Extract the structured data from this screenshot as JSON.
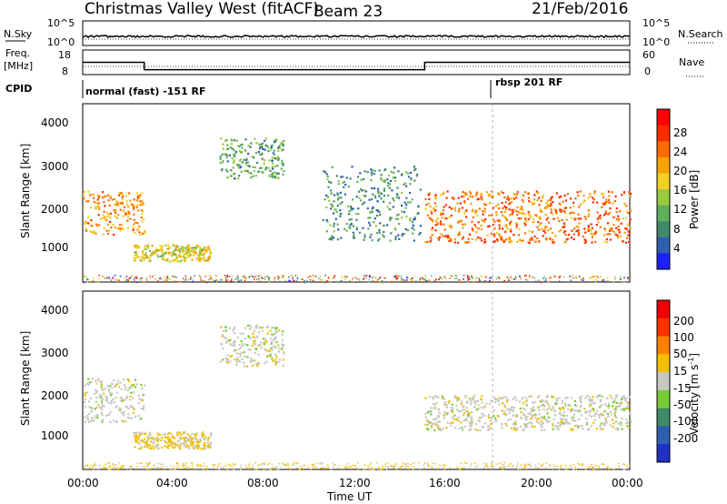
{
  "header": {
    "title": "Christmas Valley West (fitACF)",
    "beam": "Beam 23",
    "date": "21/Feb/2016"
  },
  "top_panels": {
    "nsky_label": "N.Sky",
    "nsky_ticks": [
      "10^5",
      "10^0"
    ],
    "nsearch_label": "N.Search",
    "nsearch_ticks": [
      "10^5",
      "10^0"
    ],
    "freq_label_1": "Freq.",
    "freq_label_2": "[MHz]",
    "freq_ticks": [
      "18",
      "8"
    ],
    "nave_label": "Nave",
    "nave_ticks": [
      "60",
      "0"
    ],
    "cpid_label": "CPID",
    "cpid_segments": [
      {
        "label": "normal (fast) -151 RF",
        "start_hour": 0
      },
      {
        "label": "rbsp 201 RF",
        "start_hour": 18
      }
    ]
  },
  "axes": {
    "xlabel": "Time UT",
    "ylabel": "Slant Range [km]",
    "xticks": [
      "00:00",
      "04:00",
      "08:00",
      "12:00",
      "16:00",
      "20:00",
      "00:00"
    ],
    "yticks": [
      "1000",
      "2000",
      "3000",
      "4000"
    ]
  },
  "colorbars": {
    "power": {
      "label": "Power [dB]",
      "ticks": [
        "4",
        "8",
        "12",
        "16",
        "20",
        "24",
        "28"
      ],
      "colors": [
        "#1f1fff",
        "#2e5fb0",
        "#3f8a6a",
        "#5fb05a",
        "#9acb3a",
        "#f2d020",
        "#f5a300",
        "#ff6a00",
        "#ff2a00",
        "#ff0000"
      ]
    },
    "velocity": {
      "label": "Velocity [m s",
      "label_sup": "-1",
      "label_end": "]",
      "ticks": [
        "200",
        "100",
        "50",
        "15",
        "-15",
        "-50",
        "-100",
        "-200"
      ],
      "colors": [
        "#2030c8",
        "#2e5fb0",
        "#3f8a6a",
        "#77cc33",
        "#c8c8c0",
        "#f2c000",
        "#ff8000",
        "#ff3300",
        "#ee0000"
      ]
    }
  },
  "chart_data": {
    "type": "heatmap",
    "title": "Christmas Valley West (fitACF)",
    "xlabel": "Time UT",
    "ylabel": "Slant Range [km]",
    "xlim": [
      "00:00",
      "24:00"
    ],
    "ylim": [
      180,
      4500
    ],
    "panels": [
      {
        "name": "Power",
        "colorbar_label": "Power [dB]",
        "clim": [
          0,
          30
        ],
        "regions": [
          {
            "t_start": 0.0,
            "t_end": 2.7,
            "range_start": 1350,
            "range_end": 2400,
            "value": 20
          },
          {
            "t_start": 2.2,
            "t_end": 5.6,
            "range_start": 700,
            "range_end": 1100,
            "value": 16
          },
          {
            "t_start": 6.0,
            "t_end": 8.8,
            "range_start": 2700,
            "range_end": 3700,
            "value": 10
          },
          {
            "t_start": 10.5,
            "t_end": 14.8,
            "range_start": 1200,
            "range_end": 3000,
            "value": 8
          },
          {
            "t_start": 15.0,
            "t_end": 24.0,
            "range_start": 1150,
            "range_end": 2400,
            "value": 22
          }
        ]
      },
      {
        "name": "Velocity",
        "colorbar_label": "Velocity [m s^-1]",
        "clim": [
          -200,
          200
        ],
        "regions": [
          {
            "t_start": 0.0,
            "t_end": 2.7,
            "range_start": 1350,
            "range_end": 2400,
            "value": 0
          },
          {
            "t_start": 2.2,
            "t_end": 5.6,
            "range_start": 700,
            "range_end": 1100,
            "value": 30
          },
          {
            "t_start": 6.0,
            "t_end": 8.8,
            "range_start": 2700,
            "range_end": 3700,
            "value": 0
          },
          {
            "t_start": 15.0,
            "t_end": 24.0,
            "range_start": 1150,
            "range_end": 2000,
            "value": 0
          }
        ]
      }
    ],
    "frequency_mhz": [
      {
        "t_start": 0,
        "t_end": 2.7,
        "value": 13
      },
      {
        "t_start": 2.7,
        "t_end": 15.0,
        "value": 10
      },
      {
        "t_start": 15.0,
        "t_end": 24.0,
        "value": 13
      }
    ]
  }
}
